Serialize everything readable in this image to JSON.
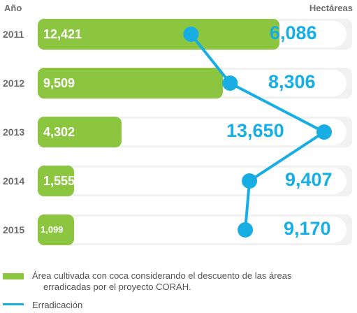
{
  "chart_data": {
    "type": "bar",
    "header_left": "Año",
    "header_right": "Hectáreas",
    "categories": [
      "2011",
      "2012",
      "2013",
      "2014",
      "2015"
    ],
    "series": [
      {
        "name": "Área cultivada con coca considerando el descuento de las áreas erradicadas por el proyecto CORAH.",
        "type": "bar",
        "values": [
          12421,
          9509,
          4302,
          1555,
          1099
        ],
        "labels": [
          "12,421",
          "9,509",
          "4,302",
          "1,555",
          "1,099"
        ],
        "color": "#8cc641"
      },
      {
        "name": "Erradicación",
        "type": "line",
        "values": [
          6086,
          8306,
          13650,
          9407,
          9170
        ],
        "labels": [
          "6,086",
          "8,306",
          "13,650",
          "9,407",
          "9,170"
        ],
        "color": "#18aee3"
      }
    ],
    "xlim": [
      0,
      13650
    ],
    "legend_position": "bottom"
  },
  "legend": {
    "bar_text_line1": "Área cultivada con coca considerando el descuento de las áreas",
    "bar_text_line2": "erradicadas por el proyecto CORAH.",
    "line_text": "Erradicación"
  }
}
